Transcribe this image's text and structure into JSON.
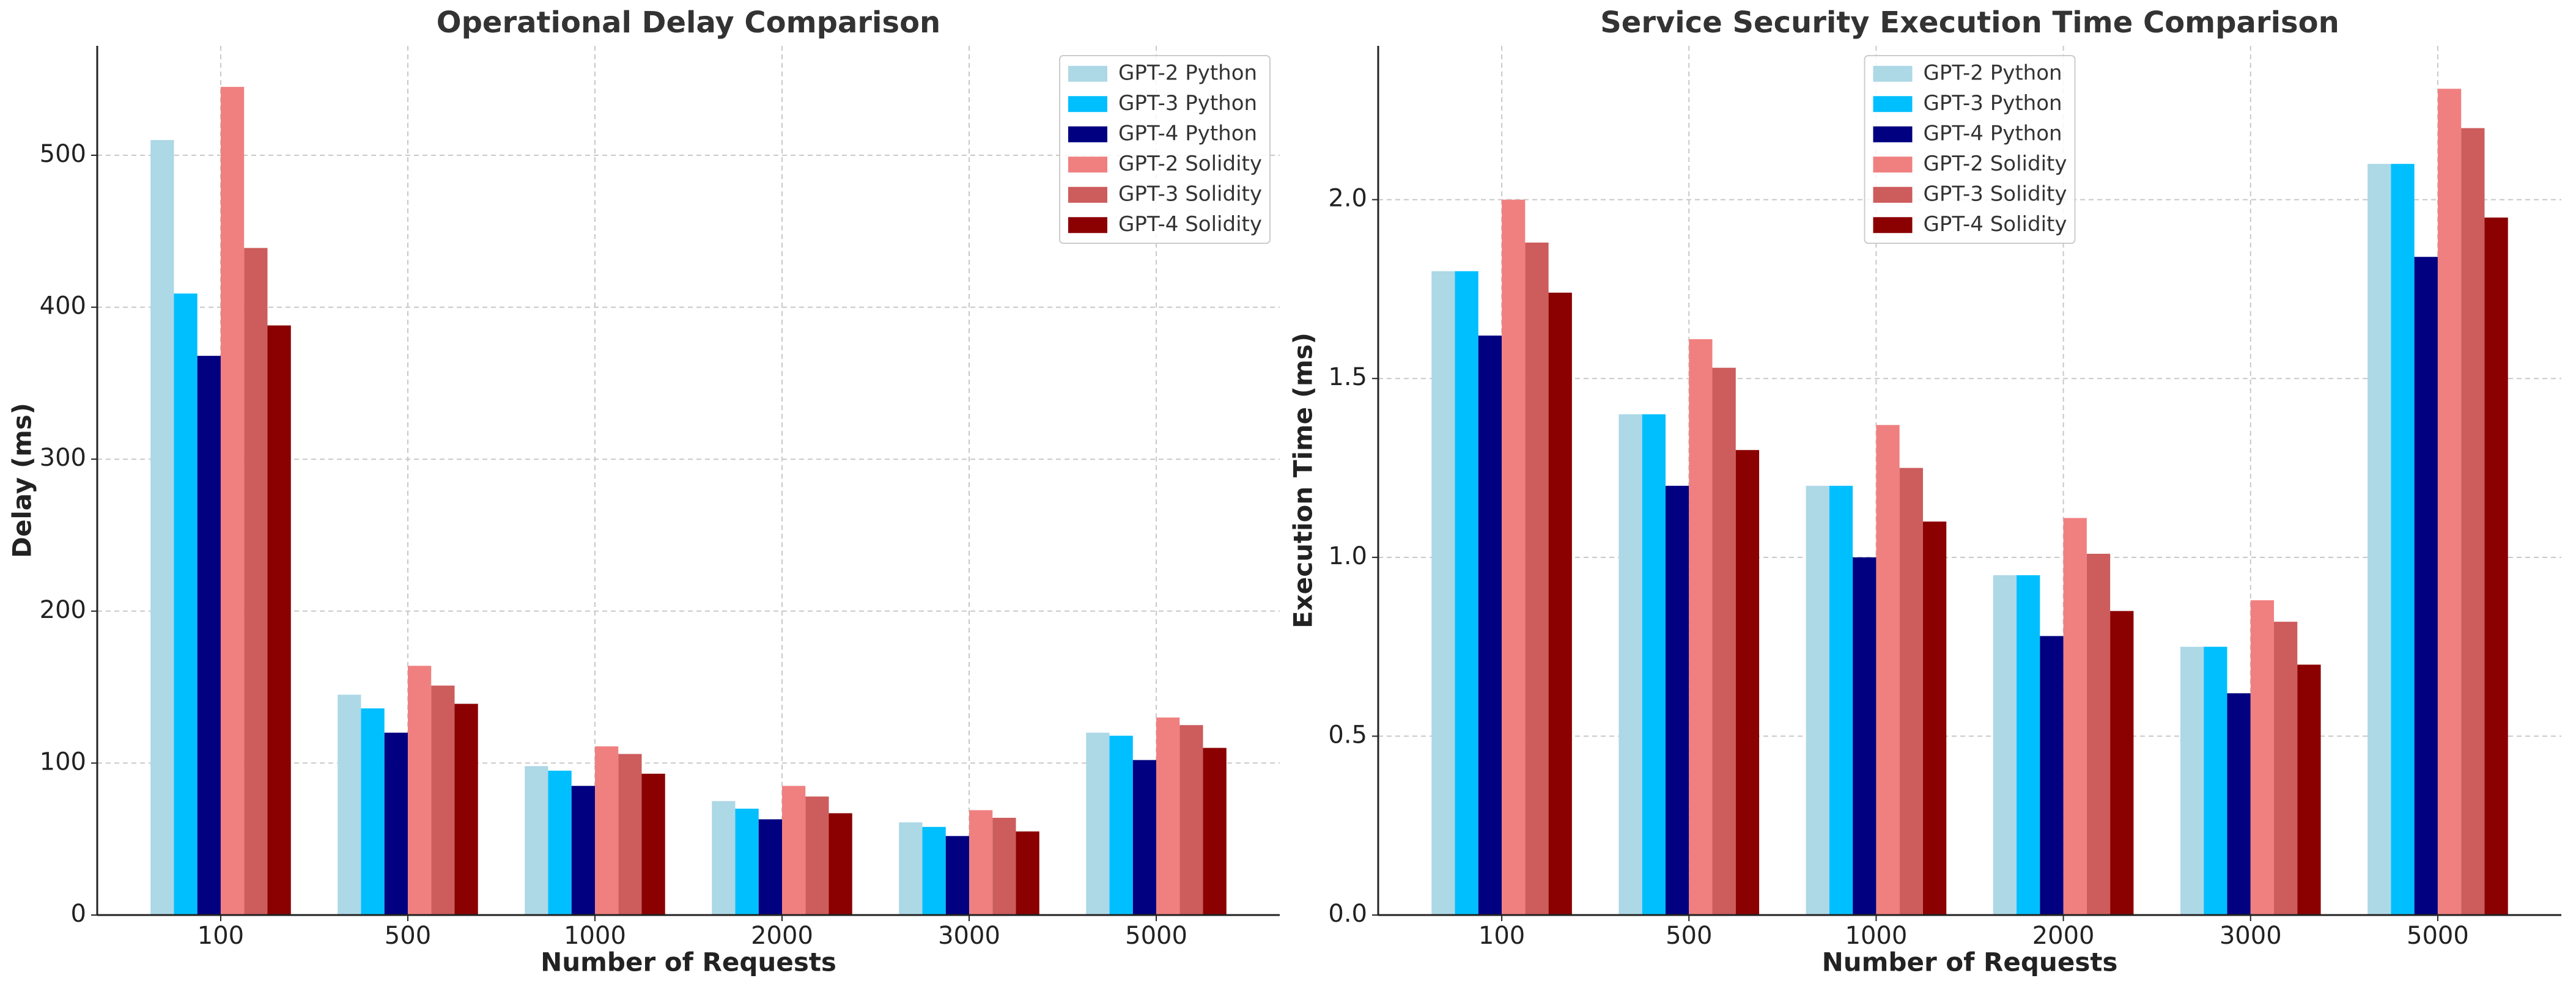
{
  "chart_data": [
    {
      "type": "bar",
      "title": "Operational Delay Comparison",
      "xlabel": "Number of Requests",
      "ylabel": "Delay (ms)",
      "categories": [
        "100",
        "500",
        "1000",
        "2000",
        "3000",
        "5000"
      ],
      "series": [
        {
          "name": "GPT-2 Python",
          "color": "#add8e6",
          "values": [
            510,
            145,
            98,
            75,
            61,
            120
          ]
        },
        {
          "name": "GPT-3 Python",
          "color": "#00bfff",
          "values": [
            409,
            136,
            95,
            70,
            58,
            118
          ]
        },
        {
          "name": "GPT-4 Python",
          "color": "#000080",
          "values": [
            368,
            120,
            85,
            63,
            52,
            102
          ]
        },
        {
          "name": "GPT-2 Solidity",
          "color": "#f08080",
          "values": [
            545,
            164,
            111,
            85,
            69,
            130
          ]
        },
        {
          "name": "GPT-3 Solidity",
          "color": "#cd5c5c",
          "values": [
            439,
            151,
            106,
            78,
            64,
            125
          ]
        },
        {
          "name": "GPT-4 Solidity",
          "color": "#8b0000",
          "values": [
            388,
            139,
            93,
            67,
            55,
            110
          ]
        }
      ],
      "ylim": [
        0,
        572
      ],
      "yticks": [
        0,
        100,
        200,
        300,
        400,
        500
      ],
      "grid": true,
      "legend": "upper right"
    },
    {
      "type": "bar",
      "title": "Service Security Execution Time Comparison",
      "xlabel": "Number of Requests",
      "ylabel": "Execution Time (ms)",
      "categories": [
        "100",
        "500",
        "1000",
        "2000",
        "3000",
        "5000"
      ],
      "series": [
        {
          "name": "GPT-2 Python",
          "color": "#add8e6",
          "values": [
            1.8,
            1.4,
            1.2,
            0.95,
            0.75,
            2.1
          ]
        },
        {
          "name": "GPT-3 Python",
          "color": "#00bfff",
          "values": [
            1.8,
            1.4,
            1.2,
            0.95,
            0.75,
            2.1
          ]
        },
        {
          "name": "GPT-4 Python",
          "color": "#000080",
          "values": [
            1.62,
            1.2,
            1.0,
            0.78,
            0.62,
            1.84
          ]
        },
        {
          "name": "GPT-2 Solidity",
          "color": "#f08080",
          "values": [
            2.0,
            1.61,
            1.37,
            1.11,
            0.88,
            2.31
          ]
        },
        {
          "name": "GPT-3 Solidity",
          "color": "#cd5c5c",
          "values": [
            1.88,
            1.53,
            1.25,
            1.01,
            0.82,
            2.2
          ]
        },
        {
          "name": "GPT-4 Solidity",
          "color": "#8b0000",
          "values": [
            1.74,
            1.3,
            1.1,
            0.85,
            0.7,
            1.95
          ]
        }
      ],
      "ylim": [
        0,
        2.43
      ],
      "yticks": [
        {
          "value": 0,
          "label": "0.0"
        },
        0.5,
        {
          "value": 1,
          "label": "1.0"
        },
        1.5,
        {
          "value": 2,
          "label": "2.0"
        }
      ],
      "grid": true,
      "legend": "upper center"
    }
  ]
}
